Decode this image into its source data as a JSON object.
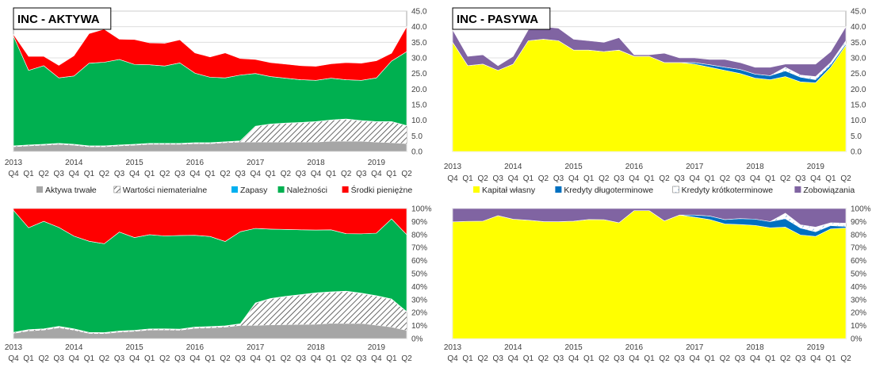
{
  "chart_data": [
    {
      "type": "area",
      "stacked": true,
      "title": "INC - AKTYWA",
      "x": [
        "Q4",
        "Q1",
        "Q2",
        "Q3",
        "Q4",
        "Q1",
        "Q2",
        "Q3",
        "Q4",
        "Q1",
        "Q2",
        "Q3",
        "Q4",
        "Q1",
        "Q2",
        "Q3",
        "Q4",
        "Q1",
        "Q2",
        "Q3",
        "Q4",
        "Q1",
        "Q2",
        "Q3",
        "Q4",
        "Q1",
        "Q2"
      ],
      "years": [
        {
          "label": "2013",
          "index": 0
        },
        {
          "label": "2014",
          "index": 4
        },
        {
          "label": "2015",
          "index": 8
        },
        {
          "label": "2016",
          "index": 12
        },
        {
          "label": "2017",
          "index": 16
        },
        {
          "label": "2018",
          "index": 20
        },
        {
          "label": "2019",
          "index": 24
        }
      ],
      "ylim": [
        0,
        45
      ],
      "yticks": [
        "0.0",
        "5.0",
        "10.0",
        "15.0",
        "20.0",
        "25.0",
        "30.0",
        "35.0",
        "40.0",
        "45.0"
      ],
      "legend_position": "bottom",
      "series": [
        {
          "name": "Aktywa trwałe",
          "color": "#a6a6a6",
          "pattern": "solid",
          "values": [
            1.5,
            1.8,
            2.0,
            2.3,
            2.0,
            1.5,
            1.5,
            1.8,
            2.0,
            2.3,
            2.3,
            2.3,
            2.5,
            2.5,
            2.8,
            3.0,
            3.0,
            3.0,
            3.0,
            3.0,
            3.0,
            3.3,
            3.3,
            3.3,
            3.0,
            2.8,
            2.5
          ]
        },
        {
          "name": "Wartości niematerialne",
          "color": "#000000",
          "pattern": "hatch",
          "values": [
            0.2,
            0.2,
            0.2,
            0.2,
            0.2,
            0.2,
            0.2,
            0.2,
            0.2,
            0.2,
            0.2,
            0.2,
            0.2,
            0.2,
            0.2,
            0.3,
            5.0,
            5.7,
            6.0,
            6.2,
            6.5,
            6.7,
            7.0,
            6.5,
            6.5,
            6.7,
            5.7
          ]
        },
        {
          "name": "Zapasy",
          "color": "#00b0f0",
          "pattern": "solid",
          "values": [
            0.1,
            0.1,
            0.1,
            0.1,
            0.1,
            0.1,
            0.1,
            0.1,
            0.1,
            0.1,
            0.1,
            0.1,
            0.1,
            0.1,
            0.1,
            0.1,
            0.1,
            0.1,
            0.1,
            0.1,
            0.1,
            0.1,
            0.1,
            0.1,
            0.1,
            0.1,
            0.1
          ]
        },
        {
          "name": "Należności",
          "color": "#00b050",
          "pattern": "solid",
          "values": [
            35.2,
            23.9,
            25.2,
            21.0,
            21.9,
            26.5,
            26.8,
            27.4,
            25.6,
            25.2,
            24.8,
            25.8,
            22.3,
            21.0,
            20.5,
            21.1,
            16.9,
            15.2,
            14.4,
            13.7,
            13.2,
            13.4,
            12.6,
            12.9,
            14.0,
            19.4,
            23.7
          ]
        },
        {
          "name": "Środki pieniężne",
          "color": "#ff0000",
          "pattern": "solid",
          "values": [
            0.5,
            4.5,
            3.0,
            4.0,
            6.5,
            9.5,
            10.6,
            6.5,
            8.0,
            7.0,
            7.3,
            7.4,
            6.5,
            6.5,
            8.0,
            5.3,
            4.5,
            4.5,
            4.5,
            4.5,
            4.5,
            4.6,
            5.5,
            5.5,
            5.5,
            2.5,
            8.0
          ]
        }
      ]
    },
    {
      "type": "area",
      "stacked": true,
      "title": "INC - PASYWA",
      "x": [
        "Q4",
        "Q1",
        "Q2",
        "Q3",
        "Q4",
        "Q1",
        "Q2",
        "Q3",
        "Q4",
        "Q1",
        "Q2",
        "Q3",
        "Q4",
        "Q1",
        "Q2",
        "Q3",
        "Q4",
        "Q1",
        "Q2",
        "Q3",
        "Q4",
        "Q1",
        "Q2",
        "Q3",
        "Q4",
        "Q1",
        "Q2"
      ],
      "years": [
        {
          "label": "2013",
          "index": 0
        },
        {
          "label": "2014",
          "index": 4
        },
        {
          "label": "2015",
          "index": 8
        },
        {
          "label": "2016",
          "index": 12
        },
        {
          "label": "2017",
          "index": 16
        },
        {
          "label": "2018",
          "index": 20
        },
        {
          "label": "2019",
          "index": 24
        }
      ],
      "ylim": [
        0,
        45
      ],
      "yticks": [
        "0.0",
        "5.0",
        "10.0",
        "15.0",
        "20.0",
        "25.0",
        "30.0",
        "35.0",
        "40.0",
        "45.0"
      ],
      "legend_position": "bottom",
      "series": [
        {
          "name": "Kapitał własny",
          "color": "#ffff00",
          "pattern": "solid",
          "values": [
            35.0,
            27.5,
            28.0,
            26.0,
            28.0,
            35.5,
            36.0,
            35.5,
            32.5,
            32.5,
            32.0,
            32.5,
            30.5,
            30.5,
            28.5,
            28.5,
            28.0,
            27.0,
            26.0,
            25.0,
            23.5,
            23.0,
            24.0,
            22.3,
            22.0,
            27.0,
            34.0
          ]
        },
        {
          "name": "Kredyty długoterminowe",
          "color": "#0070c0",
          "pattern": "solid",
          "values": [
            0,
            0,
            0,
            0,
            0,
            0,
            0,
            0,
            0,
            0,
            0,
            0,
            0,
            0,
            0,
            0,
            0.5,
            0.8,
            1.0,
            1.3,
            1.3,
            1.3,
            1.8,
            1.5,
            1.0,
            0.8,
            0.5
          ]
        },
        {
          "name": "Kredyty krótkoterminowe",
          "color": "#ffffff",
          "pattern": "dashed",
          "values": [
            0,
            0,
            0,
            0,
            0,
            0,
            0,
            0,
            0,
            0,
            0,
            0,
            0,
            0,
            0,
            0,
            0,
            0,
            0,
            0,
            0,
            0,
            1.2,
            0.7,
            1.0,
            0.7,
            1.0
          ]
        },
        {
          "name": "Zobowiązania",
          "color": "#8064a2",
          "pattern": "solid",
          "values": [
            4.0,
            3.0,
            3.0,
            1.5,
            2.5,
            3.5,
            4.0,
            4.0,
            3.5,
            3.0,
            3.0,
            4.0,
            0.5,
            0.5,
            3.0,
            1.5,
            1.5,
            1.7,
            2.5,
            2.2,
            2.2,
            2.7,
            1.0,
            3.5,
            4.0,
            3.5,
            4.5
          ]
        }
      ]
    },
    {
      "type": "area",
      "stacked": true,
      "percent": true,
      "title": "",
      "x": [
        "Q4",
        "Q1",
        "Q2",
        "Q3",
        "Q4",
        "Q1",
        "Q2",
        "Q3",
        "Q4",
        "Q1",
        "Q2",
        "Q3",
        "Q4",
        "Q1",
        "Q2",
        "Q3",
        "Q4",
        "Q1",
        "Q2",
        "Q3",
        "Q4",
        "Q1",
        "Q2",
        "Q3",
        "Q4",
        "Q1",
        "Q2"
      ],
      "years": [
        {
          "label": "2013",
          "index": 0
        },
        {
          "label": "2014",
          "index": 4
        },
        {
          "label": "2015",
          "index": 8
        },
        {
          "label": "2016",
          "index": 12
        },
        {
          "label": "2017",
          "index": 16
        },
        {
          "label": "2018",
          "index": 20
        },
        {
          "label": "2019",
          "index": 24
        }
      ],
      "ylim": [
        0,
        100
      ],
      "yticks": [
        "0%",
        "10%",
        "20%",
        "30%",
        "40%",
        "50%",
        "60%",
        "70%",
        "80%",
        "90%",
        "100%"
      ],
      "series_ref": 0
    },
    {
      "type": "area",
      "stacked": true,
      "percent": true,
      "title": "",
      "x": [
        "Q4",
        "Q1",
        "Q2",
        "Q3",
        "Q4",
        "Q1",
        "Q2",
        "Q3",
        "Q4",
        "Q1",
        "Q2",
        "Q3",
        "Q4",
        "Q1",
        "Q2",
        "Q3",
        "Q4",
        "Q1",
        "Q2",
        "Q3",
        "Q4",
        "Q1",
        "Q2",
        "Q3",
        "Q4",
        "Q1",
        "Q2"
      ],
      "years": [
        {
          "label": "2013",
          "index": 0
        },
        {
          "label": "2014",
          "index": 4
        },
        {
          "label": "2015",
          "index": 8
        },
        {
          "label": "2016",
          "index": 12
        },
        {
          "label": "2017",
          "index": 16
        },
        {
          "label": "2018",
          "index": 20
        },
        {
          "label": "2019",
          "index": 24
        }
      ],
      "ylim": [
        0,
        100
      ],
      "yticks": [
        "0%",
        "10%",
        "20%",
        "30%",
        "40%",
        "50%",
        "60%",
        "70%",
        "80%",
        "90%",
        "100%"
      ],
      "series_ref": 1
    }
  ]
}
